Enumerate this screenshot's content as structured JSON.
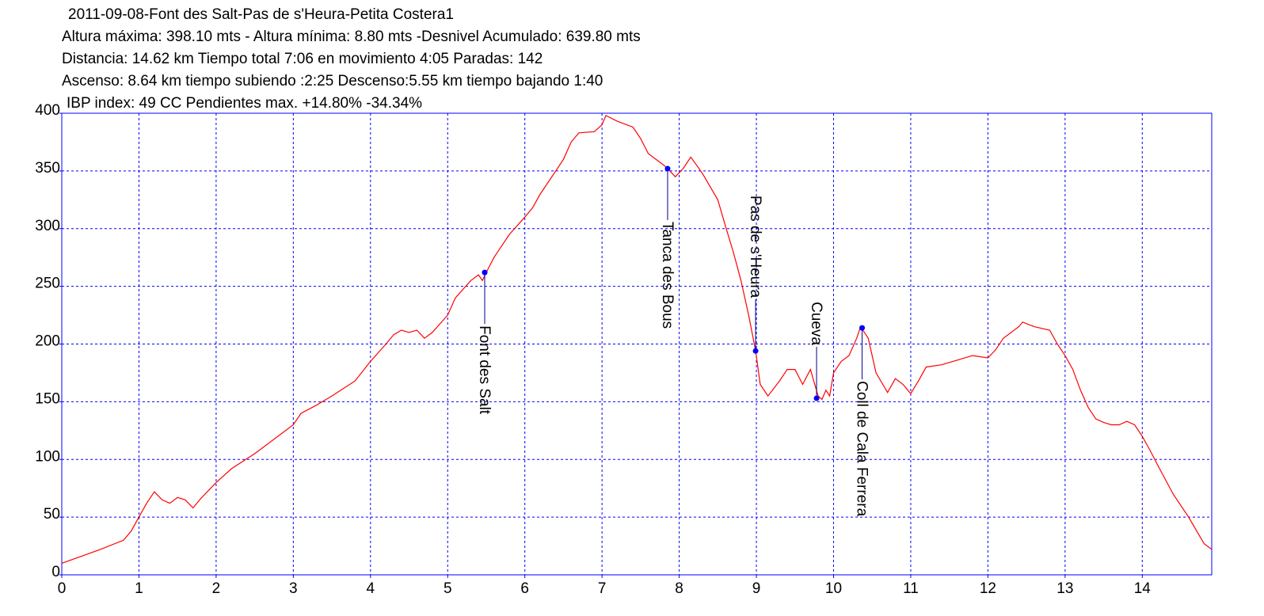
{
  "chart_data": {
    "type": "line",
    "title": "2011-09-08-Font des Salt-Pas de s'Heura-Petita Costera1",
    "subtitle": [
      "Altura máxima: 398.10 mts - Altura mínima: 8.80 mts -Desnivel Acumulado: 639.80 mts",
      "Distancia: 14.62 km  Tiempo total 7:06  en movimiento 4:05 Paradas: 142",
      "Ascenso: 8.64 km  tiempo subiendo :2:25  Descenso:5.55 km tiempo bajando 1:40",
      "IBP index: 49 CC  Pendientes max. +14.80%  -34.34%"
    ],
    "x": [
      0,
      0.5,
      0.8,
      0.9,
      1.0,
      1.1,
      1.2,
      1.3,
      1.4,
      1.5,
      1.6,
      1.7,
      1.8,
      2.0,
      2.2,
      2.5,
      3.0,
      3.1,
      3.3,
      3.5,
      3.8,
      4.0,
      4.2,
      4.3,
      4.4,
      4.5,
      4.6,
      4.7,
      4.8,
      5.0,
      5.1,
      5.3,
      5.4,
      5.45,
      5.5,
      5.6,
      5.8,
      6.0,
      6.1,
      6.2,
      6.4,
      6.5,
      6.6,
      6.7,
      6.9,
      7.0,
      7.05,
      7.2,
      7.4,
      7.5,
      7.6,
      7.8,
      7.85,
      7.95,
      8.05,
      8.15,
      8.3,
      8.5,
      8.6,
      8.7,
      8.8,
      8.9,
      8.99,
      9.05,
      9.15,
      9.3,
      9.4,
      9.5,
      9.6,
      9.7,
      9.8,
      9.85,
      9.9,
      9.95,
      10.0,
      10.1,
      10.2,
      10.3,
      10.35,
      10.45,
      10.55,
      10.7,
      10.8,
      10.9,
      11.0,
      11.1,
      11.2,
      11.4,
      11.6,
      11.8,
      12.0,
      12.1,
      12.2,
      12.4,
      12.45,
      12.6,
      12.8,
      12.9,
      13.0,
      13.1,
      13.2,
      13.3,
      13.4,
      13.5,
      13.6,
      13.7,
      13.8,
      13.9,
      14.0,
      14.1,
      14.2,
      14.4,
      14.6,
      14.8,
      14.9
    ],
    "values": [
      10,
      22,
      30,
      38,
      50,
      62,
      72,
      65,
      62,
      67,
      65,
      58,
      66,
      80,
      92,
      105,
      130,
      140,
      147,
      155,
      168,
      185,
      200,
      208,
      212,
      210,
      212,
      205,
      210,
      225,
      240,
      255,
      260,
      255,
      262,
      275,
      295,
      310,
      318,
      330,
      350,
      360,
      375,
      383,
      384,
      390,
      398,
      393,
      388,
      378,
      365,
      355,
      352,
      345,
      352,
      362,
      348,
      325,
      302,
      280,
      255,
      225,
      194,
      165,
      155,
      168,
      178,
      178,
      165,
      178,
      155,
      152,
      160,
      155,
      175,
      185,
      190,
      205,
      215,
      205,
      175,
      158,
      170,
      165,
      157,
      168,
      180,
      182,
      186,
      190,
      188,
      195,
      205,
      215,
      219,
      215,
      212,
      200,
      190,
      178,
      160,
      145,
      135,
      132,
      130,
      130,
      133,
      130,
      120,
      108,
      95,
      70,
      50,
      27,
      22
    ],
    "color": "#ff0000",
    "annotations": [
      {
        "label": "Font des Salt",
        "x": 5.48,
        "y": 262
      },
      {
        "label": "Tanca des Bous",
        "x": 7.85,
        "y": 352
      },
      {
        "label": "Pas de s'Heura",
        "x": 8.99,
        "y": 194
      },
      {
        "label": "Cueva",
        "x": 9.78,
        "y": 153
      },
      {
        "label": "Coll de Cala Ferrera",
        "x": 10.37,
        "y": 214
      }
    ],
    "xlim": [
      0,
      14.9
    ],
    "xticks": [
      0,
      1,
      2,
      3,
      4,
      5,
      6,
      7,
      8,
      9,
      10,
      11,
      12,
      13,
      14
    ],
    "ylim": [
      0,
      400
    ],
    "yticks": [
      0,
      50,
      100,
      150,
      200,
      250,
      300,
      350,
      400
    ],
    "grid": true
  }
}
